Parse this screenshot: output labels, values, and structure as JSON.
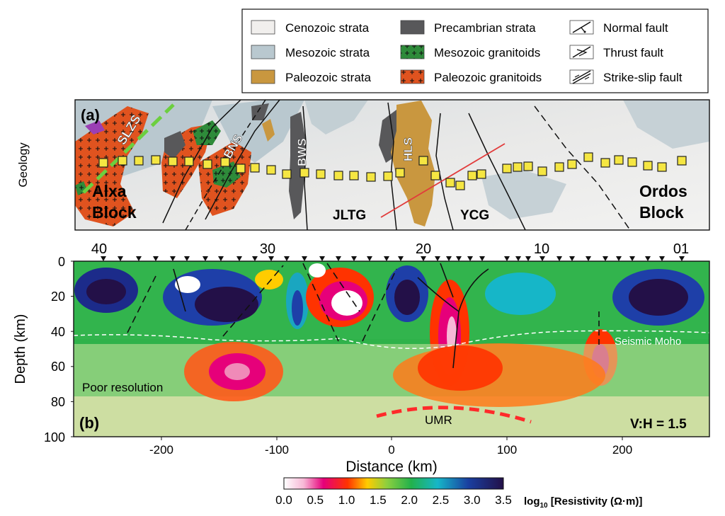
{
  "legend": {
    "items": [
      {
        "label": "Cenozoic strata",
        "swatch": "cenozoic",
        "color": "#f1efed"
      },
      {
        "label": "Mesozoic strata",
        "swatch": "mesozoic",
        "color": "#b9c8cf"
      },
      {
        "label": "Paleozoic strata",
        "swatch": "paleozoic",
        "color": "#c9973f"
      },
      {
        "label": "Precambrian strata",
        "swatch": "precambrian",
        "color": "#58585a"
      },
      {
        "label": "Mesozoic granitoids",
        "swatch": "meso-granitoid",
        "color": "#2e8b3a"
      },
      {
        "label": "Paleozoic granitoids",
        "swatch": "paleo-granitoid",
        "color": "#e0531f"
      },
      {
        "label": "Normal fault",
        "swatch": "normal-fault-icon"
      },
      {
        "label": "Thrust fault",
        "swatch": "thrust-fault-icon"
      },
      {
        "label": "Strike-slip fault",
        "swatch": "strike-slip-fault-icon"
      }
    ]
  },
  "panel_a": {
    "label": "(a)",
    "side_label": "Geology",
    "map_labels": {
      "slzs": "SLZS",
      "bns": "BNS",
      "bws": "BWS",
      "hls": "HLS",
      "alxa": "Alxa",
      "alxa2": "Block",
      "ordos": "Ordos",
      "ordos2": "Block",
      "jltg": "JLTG",
      "ycg": "YCG"
    }
  },
  "panel_b": {
    "label": "(b)",
    "ylabel": "Depth (km)",
    "xlabel": "Distance (km)",
    "x_ticks": [
      "-200",
      "-100",
      "0",
      "100",
      "200"
    ],
    "y_ticks": [
      "0",
      "20",
      "40",
      "60",
      "80",
      "100"
    ],
    "station_labels": [
      "40",
      "30",
      "20",
      "10",
      "01"
    ],
    "annotations": {
      "seismic_moho": "Seismic Moho",
      "poor_resolution": "Poor resolution",
      "umr": "UMR",
      "ratio": "V:H = 1.5"
    }
  },
  "colorbar": {
    "ticks": [
      "0.0",
      "0.5",
      "1.0",
      "1.5",
      "2.0",
      "2.5",
      "3.0",
      "3.5"
    ],
    "title_prefix": "log",
    "title_sub": "10",
    "title_rest": " [Resistivity (Ω·m)]"
  },
  "chart_data": {
    "type": "heatmap",
    "xlabel": "Distance (km)",
    "ylabel": "Depth (km)",
    "xlim": [
      -275,
      275
    ],
    "ylim": [
      100,
      0
    ],
    "colorbar_label": "log10 [Resistivity (Ω·m)]",
    "colorbar_range": [
      0.0,
      3.5
    ],
    "x_ticks": [
      -200,
      -100,
      0,
      100,
      200
    ],
    "y_ticks": [
      0,
      20,
      40,
      60,
      80,
      100
    ]
  }
}
